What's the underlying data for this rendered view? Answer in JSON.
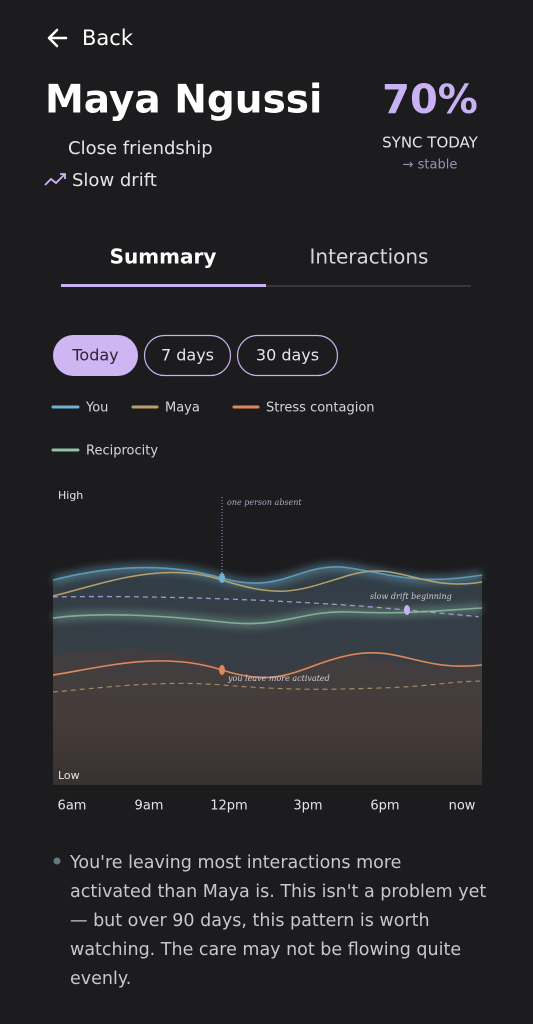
{
  "header": {
    "back": "Back",
    "name": "Maya Ngussi",
    "relationship": "Close friendship",
    "trend": "Slow drift",
    "sync": {
      "value": "70%",
      "label": "SYNC TODAY",
      "status": "→ stable"
    }
  },
  "tabs": [
    "Summary",
    "Interactions"
  ],
  "ranges": [
    "Today",
    "7 days",
    "30 days"
  ],
  "legend": [
    "You",
    "Maya",
    "Stress contagion",
    "Reciprocity"
  ],
  "chart": {
    "y_high": "High",
    "y_low": "Low",
    "x_labels": [
      "6am",
      "9am",
      "12pm",
      "3pm",
      "6pm",
      "now"
    ],
    "annotations": [
      "one person absent",
      "slow drift beginning",
      "you leave more activated"
    ]
  },
  "insight": [
    "You're leaving most interactions more",
    "activated than Maya is. This isn't a problem yet",
    "— but over 90 days, this pattern is worth",
    "watching. The care may not be flowing quite",
    "evenly."
  ]
}
